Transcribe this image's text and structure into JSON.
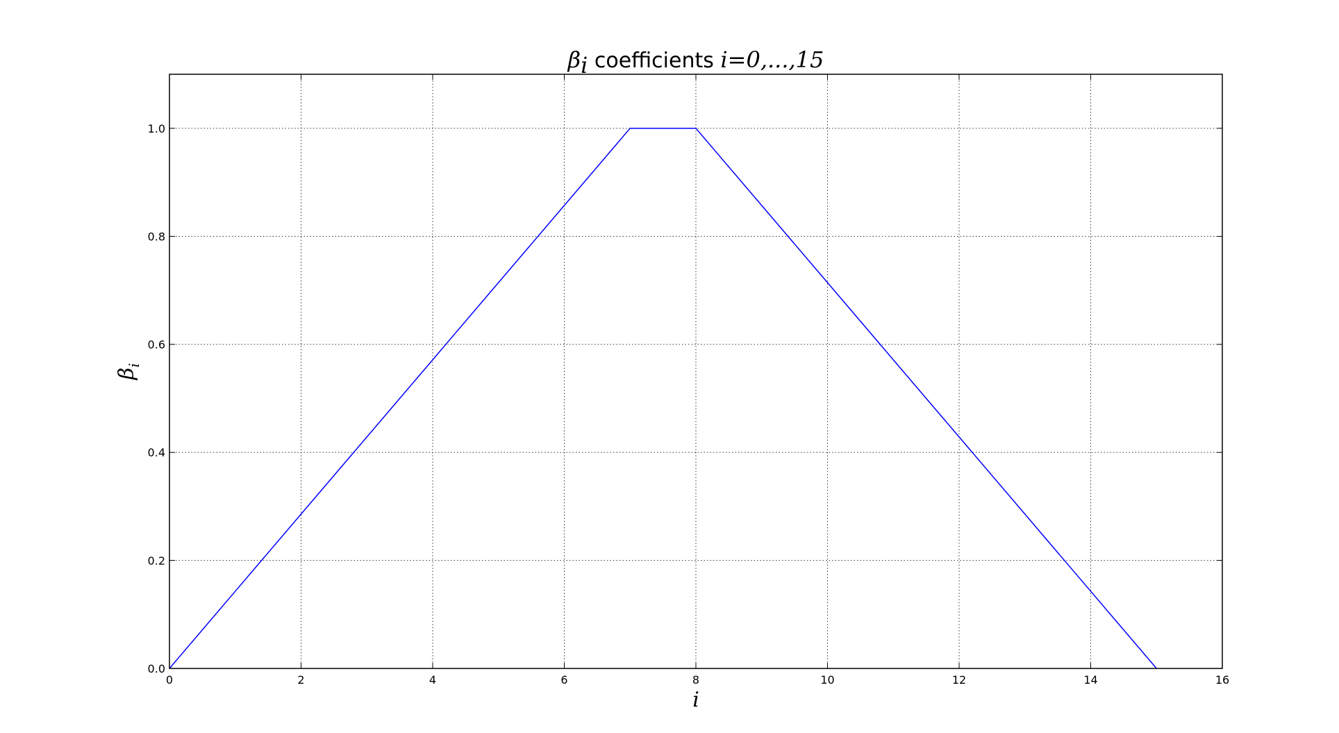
{
  "chart_data": {
    "type": "line",
    "title": {
      "symbol": "β",
      "subscript": "i",
      "text": " coefficients ",
      "range": "i=0,...,15"
    },
    "xlabel": "i",
    "ylabel": {
      "symbol": "β",
      "subscript": "i"
    },
    "xlim": [
      0,
      16
    ],
    "ylim": [
      0,
      1.1
    ],
    "xticks": [
      0,
      2,
      4,
      6,
      8,
      10,
      12,
      14,
      16
    ],
    "xtick_labels": [
      "0",
      "2",
      "4",
      "6",
      "8",
      "10",
      "12",
      "14",
      "16"
    ],
    "yticks": [
      0.0,
      0.2,
      0.4,
      0.6,
      0.8,
      1.0
    ],
    "ytick_labels": [
      "0.0",
      "0.2",
      "0.4",
      "0.6",
      "0.8",
      "1.0"
    ],
    "grid": true,
    "series": [
      {
        "color": "#0000ff",
        "x": [
          0,
          1,
          2,
          3,
          4,
          5,
          6,
          7,
          8,
          9,
          10,
          11,
          12,
          13,
          14,
          15
        ],
        "y": [
          0.0,
          0.1429,
          0.2857,
          0.4286,
          0.5714,
          0.7143,
          0.8571,
          1.0,
          1.0,
          0.8571,
          0.7143,
          0.5714,
          0.4286,
          0.2857,
          0.1429,
          0.0
        ]
      }
    ]
  }
}
